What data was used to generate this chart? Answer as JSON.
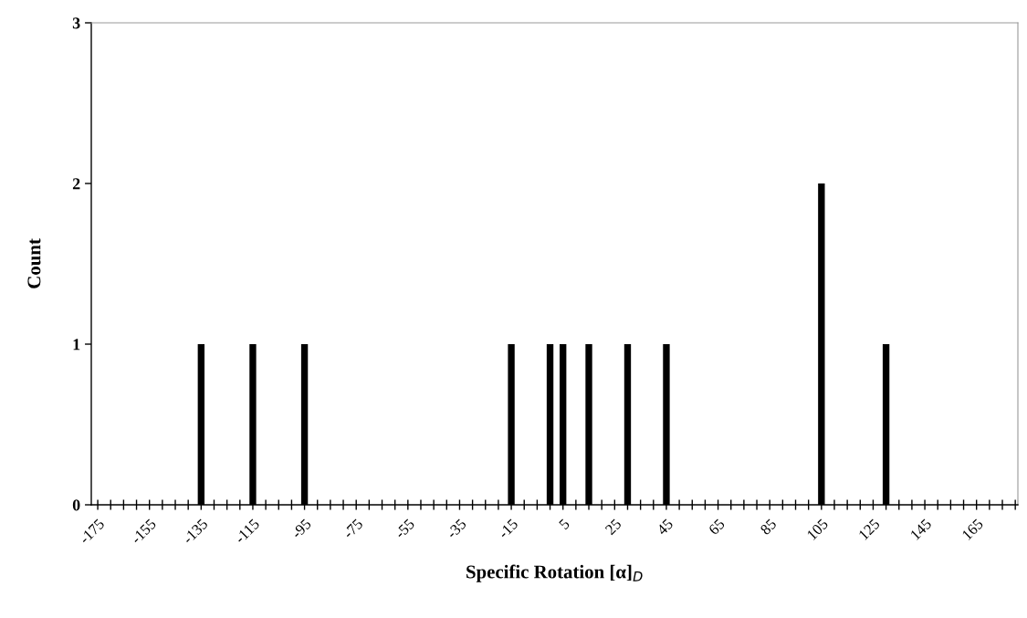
{
  "chart_data": {
    "type": "bar",
    "xlabel": "Specific Rotation [α]$_{D}$",
    "ylabel": "Count",
    "x": [
      -135,
      -115,
      -95,
      -15,
      0,
      5,
      15,
      30,
      45,
      105,
      130
    ],
    "values": [
      1,
      1,
      1,
      1,
      1,
      1,
      1,
      1,
      1,
      2,
      1
    ],
    "color": "#000000",
    "xlim": [
      -177.5,
      181
    ],
    "ylim": [
      0,
      3
    ],
    "yticks": [
      0,
      1,
      2,
      3
    ],
    "xticks": [
      -175,
      {
        "value": -170,
        "label": null
      },
      {
        "value": -165,
        "label": null
      },
      {
        "value": -160,
        "label": null
      },
      -155,
      {
        "value": -150,
        "label": null
      },
      {
        "value": -145,
        "label": null
      },
      {
        "value": -140,
        "label": null
      },
      -135,
      {
        "value": -130,
        "label": null
      },
      {
        "value": -125,
        "label": null
      },
      {
        "value": -120,
        "label": null
      },
      -115,
      {
        "value": -110,
        "label": null
      },
      {
        "value": -105,
        "label": null
      },
      {
        "value": -100,
        "label": null
      },
      -95,
      {
        "value": -90,
        "label": null
      },
      {
        "value": -85,
        "label": null
      },
      {
        "value": -80,
        "label": null
      },
      -75,
      {
        "value": -70,
        "label": null
      },
      {
        "value": -65,
        "label": null
      },
      {
        "value": -60,
        "label": null
      },
      -55,
      {
        "value": -50,
        "label": null
      },
      {
        "value": -45,
        "label": null
      },
      {
        "value": -40,
        "label": null
      },
      -35,
      {
        "value": -30,
        "label": null
      },
      {
        "value": -25,
        "label": null
      },
      {
        "value": -20,
        "label": null
      },
      -15,
      {
        "value": -10,
        "label": null
      },
      {
        "value": -5,
        "label": null
      },
      {
        "value": 0,
        "label": null
      },
      5,
      {
        "value": 10,
        "label": null
      },
      {
        "value": 15,
        "label": null
      },
      {
        "value": 20,
        "label": null
      },
      25,
      {
        "value": 30,
        "label": null
      },
      {
        "value": 35,
        "label": null
      },
      {
        "value": 40,
        "label": null
      },
      45,
      {
        "value": 50,
        "label": null
      },
      {
        "value": 55,
        "label": null
      },
      {
        "value": 60,
        "label": null
      },
      65,
      {
        "value": 70,
        "label": null
      },
      {
        "value": 75,
        "label": null
      },
      {
        "value": 80,
        "label": null
      },
      85,
      {
        "value": 90,
        "label": null
      },
      {
        "value": 95,
        "label": null
      },
      {
        "value": 100,
        "label": null
      },
      105,
      {
        "value": 110,
        "label": null
      },
      {
        "value": 115,
        "label": null
      },
      {
        "value": 120,
        "label": null
      },
      125,
      {
        "value": 130,
        "label": null
      },
      {
        "value": 135,
        "label": null
      },
      {
        "value": 140,
        "label": null
      },
      145,
      {
        "value": 150,
        "label": null
      },
      {
        "value": 155,
        "label": null
      },
      {
        "value": 160,
        "label": null
      },
      165,
      {
        "value": 170,
        "label": null
      },
      {
        "value": 175,
        "label": null
      },
      {
        "value": 180,
        "label": null
      }
    ],
    "grid": false,
    "legend": false
  }
}
